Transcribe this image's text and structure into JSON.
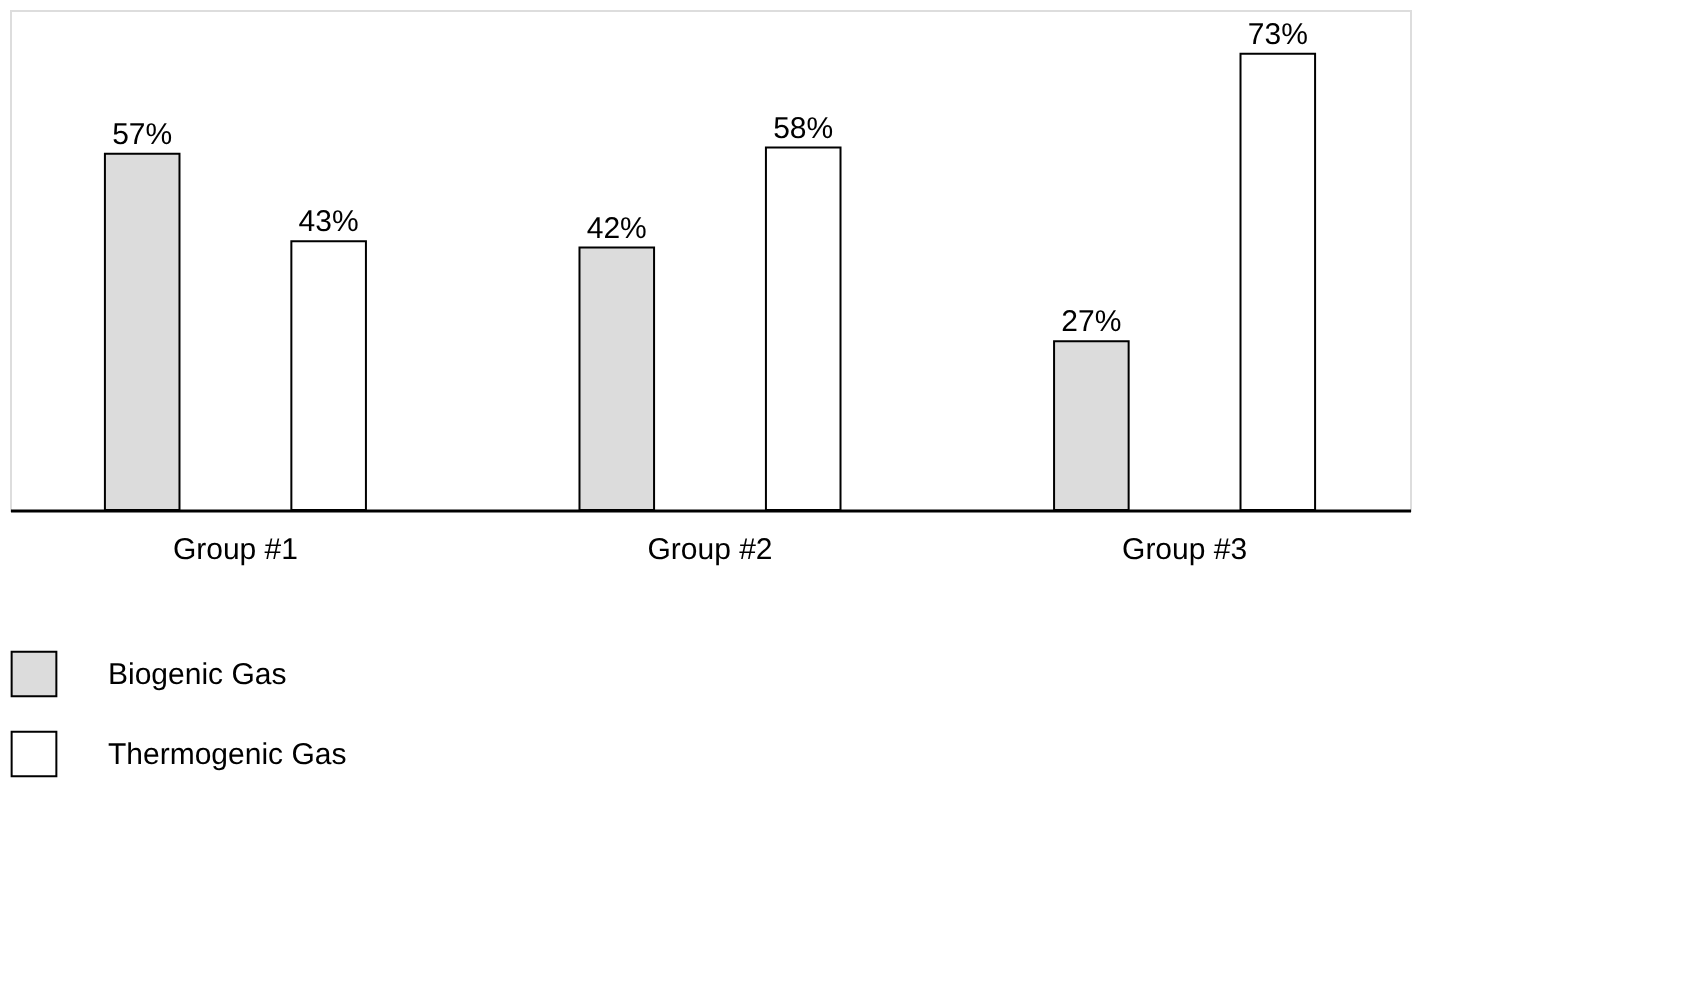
{
  "chart_data": {
    "type": "bar",
    "categories": [
      "Group #1",
      "Group #2",
      "Group #3"
    ],
    "series": [
      {
        "name": "Biogenic Gas",
        "color": "#dcdcdc",
        "values": [
          57,
          42,
          27
        ],
        "value_labels": [
          "57%",
          "42%",
          "27%"
        ]
      },
      {
        "name": "Thermogenic Gas",
        "color": "#ffffff",
        "values": [
          43,
          58,
          73
        ],
        "value_labels": [
          "43%",
          "58%",
          "73%"
        ]
      }
    ],
    "legend": "bottom left",
    "grid": false
  }
}
